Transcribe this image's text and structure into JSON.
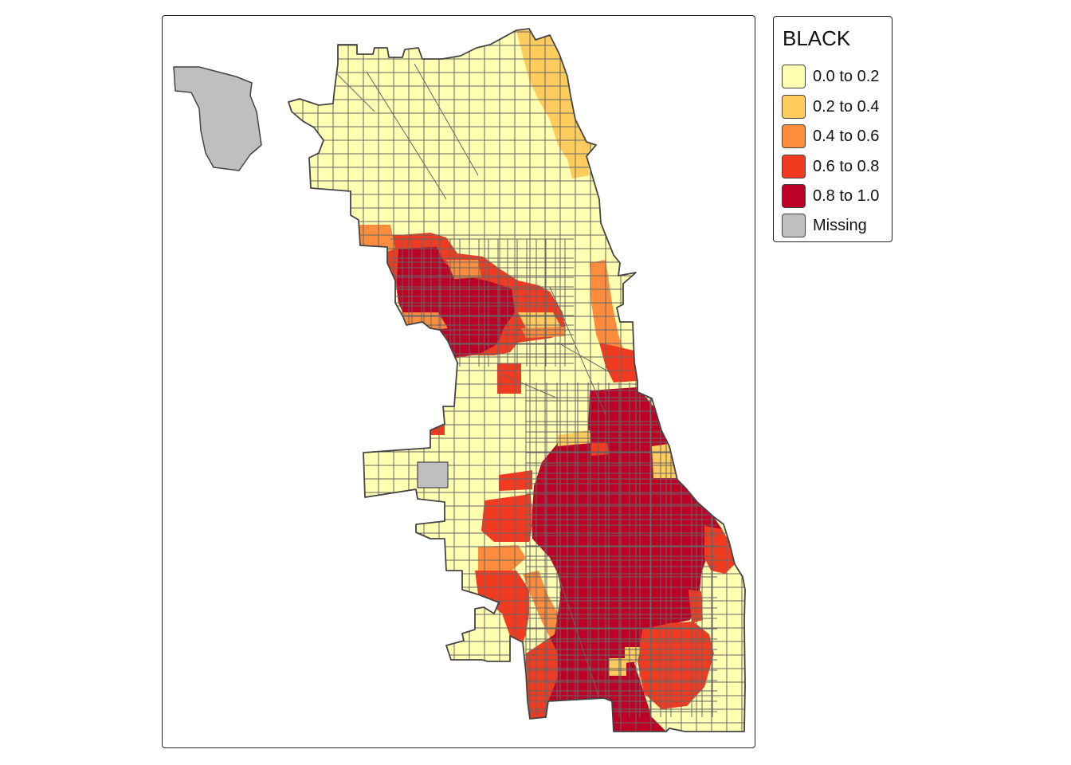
{
  "legend": {
    "title": "BLACK",
    "items": [
      {
        "label": "0.0 to 0.2",
        "color": "#ffffb2"
      },
      {
        "label": "0.2 to 0.4",
        "color": "#fecc5c"
      },
      {
        "label": "0.4 to 0.6",
        "color": "#fd8d3c"
      },
      {
        "label": "0.6 to 0.8",
        "color": "#f03b20"
      },
      {
        "label": "0.8 to 1.0",
        "color": "#bd0026"
      },
      {
        "label": "Missing",
        "color": "#bfbfbf"
      }
    ]
  },
  "map": {
    "boundary_color": "#444444",
    "tract_line_color": "#666666"
  }
}
